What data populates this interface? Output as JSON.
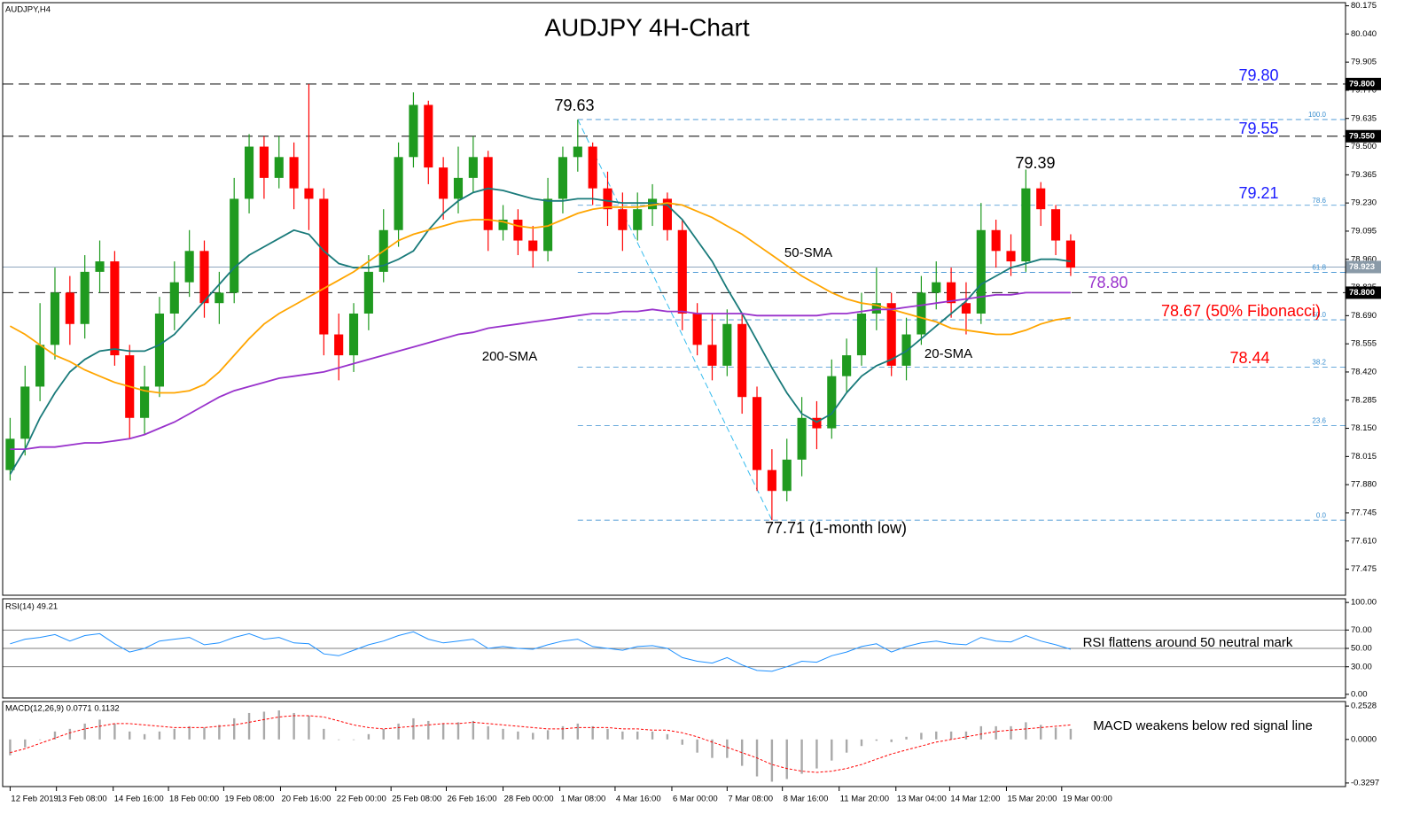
{
  "chart_data": [
    {
      "type": "candlestick",
      "title": "AUDJPY 4H-Chart",
      "symbol": "AUDJPY,H4",
      "up_color": "#1f9a1f",
      "down_color": "#ff0000",
      "open": [
        77.95,
        78.1,
        78.35,
        78.55,
        78.8,
        78.65,
        78.9,
        78.95,
        78.5,
        78.2,
        78.35,
        78.7,
        78.85,
        79.0,
        78.75,
        78.8,
        79.25,
        79.5,
        79.35,
        79.45,
        79.3,
        79.25,
        78.6,
        78.5,
        78.7,
        78.9,
        79.1,
        79.45,
        79.7,
        79.4,
        79.25,
        79.35,
        79.45,
        79.1,
        79.15,
        79.05,
        79.0,
        79.25,
        79.45,
        79.5,
        79.3,
        79.2,
        79.1,
        79.2,
        79.25,
        79.1,
        78.7,
        78.55,
        78.45,
        78.65,
        78.3,
        77.95,
        77.85,
        78.0,
        78.2,
        78.15,
        78.4,
        78.5,
        78.7,
        78.75,
        78.45,
        78.6,
        78.8,
        78.85,
        78.75,
        78.7,
        79.1,
        79.0,
        78.95,
        79.3,
        79.2,
        79.05
      ],
      "high": [
        78.2,
        78.45,
        78.75,
        78.92,
        78.88,
        78.98,
        79.05,
        79.0,
        78.55,
        78.45,
        78.78,
        78.95,
        79.1,
        79.05,
        78.9,
        79.35,
        79.56,
        79.55,
        79.55,
        79.52,
        79.8,
        79.3,
        78.7,
        78.75,
        78.98,
        79.2,
        79.52,
        79.76,
        79.72,
        79.45,
        79.5,
        79.55,
        79.48,
        79.22,
        79.2,
        79.12,
        79.35,
        79.5,
        79.63,
        79.52,
        79.38,
        79.28,
        79.28,
        79.32,
        79.28,
        79.15,
        78.75,
        78.7,
        78.72,
        78.7,
        78.35,
        78.05,
        78.1,
        78.3,
        78.28,
        78.48,
        78.58,
        78.8,
        78.92,
        78.8,
        78.68,
        78.88,
        78.95,
        78.92,
        78.85,
        79.23,
        79.15,
        79.08,
        79.39,
        79.33,
        79.22,
        79.08
      ],
      "low": [
        77.9,
        78.02,
        78.28,
        78.48,
        78.55,
        78.58,
        78.8,
        78.45,
        78.1,
        78.12,
        78.3,
        78.62,
        78.78,
        78.68,
        78.65,
        78.75,
        79.18,
        79.25,
        79.3,
        79.2,
        79.1,
        78.5,
        78.38,
        78.42,
        78.62,
        78.85,
        79.02,
        79.4,
        79.32,
        79.15,
        79.18,
        79.28,
        79.0,
        79.05,
        78.98,
        78.92,
        78.95,
        79.18,
        79.38,
        79.22,
        79.12,
        79.0,
        79.05,
        79.12,
        79.05,
        78.62,
        78.5,
        78.38,
        78.4,
        78.22,
        77.85,
        77.71,
        77.8,
        77.92,
        78.05,
        78.1,
        78.32,
        78.45,
        78.62,
        78.4,
        78.38,
        78.55,
        78.72,
        78.68,
        78.6,
        78.65,
        78.92,
        78.88,
        78.9,
        79.12,
        78.98,
        78.88
      ],
      "close": [
        78.1,
        78.35,
        78.55,
        78.8,
        78.65,
        78.9,
        78.95,
        78.5,
        78.2,
        78.35,
        78.7,
        78.85,
        79.0,
        78.75,
        78.8,
        79.25,
        79.5,
        79.35,
        79.45,
        79.3,
        79.25,
        78.6,
        78.5,
        78.7,
        78.9,
        79.1,
        79.45,
        79.7,
        79.4,
        79.25,
        79.35,
        79.45,
        79.1,
        79.15,
        79.05,
        79.0,
        79.25,
        79.45,
        79.5,
        79.3,
        79.2,
        79.1,
        79.2,
        79.25,
        79.1,
        78.7,
        78.55,
        78.45,
        78.65,
        78.3,
        77.95,
        77.85,
        78.0,
        78.2,
        78.15,
        78.4,
        78.5,
        78.7,
        78.75,
        78.45,
        78.6,
        78.8,
        78.85,
        78.75,
        78.7,
        79.1,
        79.0,
        78.95,
        79.3,
        79.2,
        79.05,
        78.92
      ],
      "series": [
        {
          "name": "20-SMA",
          "color": "#197a7a",
          "values": [
            77.93,
            78.05,
            78.2,
            78.32,
            78.42,
            78.48,
            78.52,
            78.53,
            78.52,
            78.52,
            78.55,
            78.6,
            78.68,
            78.76,
            78.84,
            78.92,
            78.98,
            79.02,
            79.06,
            79.1,
            79.08,
            79.0,
            78.94,
            78.92,
            78.92,
            78.93,
            78.96,
            79.0,
            79.1,
            79.18,
            79.24,
            79.28,
            79.3,
            79.29,
            79.27,
            79.25,
            79.24,
            79.24,
            79.25,
            79.25,
            79.24,
            79.23,
            79.23,
            79.23,
            79.22,
            79.15,
            79.05,
            78.95,
            78.82,
            78.7,
            78.57,
            78.44,
            78.32,
            78.22,
            78.18,
            78.22,
            78.32,
            78.4,
            78.45,
            78.48,
            78.52,
            78.58,
            78.64,
            78.7,
            78.76,
            78.84,
            78.88,
            78.92,
            78.94,
            78.96,
            78.96,
            78.95
          ]
        },
        {
          "name": "50-SMA",
          "color": "#ffa500",
          "values": [
            78.64,
            78.6,
            78.55,
            78.5,
            78.47,
            78.43,
            78.4,
            78.37,
            78.35,
            78.33,
            78.32,
            78.32,
            78.33,
            78.36,
            78.42,
            78.5,
            78.58,
            78.65,
            78.7,
            78.74,
            78.78,
            78.82,
            78.86,
            78.9,
            78.95,
            79.0,
            79.05,
            79.08,
            79.1,
            79.12,
            79.14,
            79.15,
            79.15,
            79.14,
            79.12,
            79.11,
            79.12,
            79.15,
            79.18,
            79.2,
            79.21,
            79.21,
            79.21,
            79.22,
            79.23,
            79.22,
            79.19,
            79.16,
            79.12,
            79.08,
            79.03,
            78.98,
            78.93,
            78.88,
            78.84,
            78.8,
            78.77,
            78.75,
            78.74,
            78.72,
            78.7,
            78.68,
            78.66,
            78.63,
            78.62,
            78.61,
            78.6,
            78.6,
            78.62,
            78.65,
            78.67,
            78.68
          ]
        },
        {
          "name": "200-SMA",
          "color": "#9932cc",
          "values": [
            78.05,
            78.05,
            78.06,
            78.06,
            78.07,
            78.08,
            78.08,
            78.09,
            78.1,
            78.12,
            78.15,
            78.18,
            78.22,
            78.26,
            78.3,
            78.33,
            78.35,
            78.37,
            78.39,
            78.4,
            78.41,
            78.42,
            78.44,
            78.46,
            78.48,
            78.5,
            78.52,
            78.54,
            78.56,
            78.58,
            78.6,
            78.61,
            78.63,
            78.64,
            78.65,
            78.66,
            78.67,
            78.68,
            78.69,
            78.7,
            78.7,
            78.71,
            78.71,
            78.72,
            78.71,
            78.71,
            78.7,
            78.7,
            78.7,
            78.7,
            78.69,
            78.69,
            78.69,
            78.69,
            78.69,
            78.7,
            78.7,
            78.71,
            78.72,
            78.72,
            78.73,
            78.74,
            78.75,
            78.76,
            78.77,
            78.78,
            78.79,
            78.79,
            78.8,
            78.8,
            78.8,
            78.8
          ]
        }
      ],
      "levels": [
        {
          "value": 79.8,
          "label": "79.800"
        },
        {
          "value": 79.55,
          "label": "79.550"
        },
        {
          "value": 78.8,
          "label": "78.800"
        }
      ],
      "last_price": 78.923,
      "fibonacci": [
        {
          "percent": "100.0",
          "price": 79.63
        },
        {
          "percent": "78.6",
          "price": 79.219
        },
        {
          "percent": "61.8",
          "price": 78.897
        },
        {
          "percent": "50.0",
          "price": 78.67
        },
        {
          "percent": "38.2",
          "price": 78.443
        },
        {
          "percent": "23.6",
          "price": 78.163
        },
        {
          "percent": "0.0",
          "price": 77.71
        }
      ],
      "swing": {
        "x": [
          38,
          51
        ],
        "y": [
          79.63,
          77.71
        ]
      },
      "annotations": [
        {
          "text": "79.80",
          "color": "#1a1aff"
        },
        {
          "text": "79.55",
          "color": "#1a1aff"
        },
        {
          "text": "79.63",
          "color": "#000000"
        },
        {
          "text": "79.39",
          "color": "#000000"
        },
        {
          "text": "79.21",
          "color": "#1a1aff"
        },
        {
          "text": "78.80",
          "color": "#9932cc"
        },
        {
          "text": "78.67 (50% Fibonacci)",
          "color": "#ff0000"
        },
        {
          "text": "78.44",
          "color": "#ff0000"
        },
        {
          "text": "77.71 (1-month low)",
          "color": "#000000"
        }
      ],
      "ylim": [
        77.35,
        80.19
      ],
      "yticks": [
        80.175,
        {
          "value": 80.04,
          "label": "80.040"
        },
        79.905,
        {
          "value": 79.77,
          "label": "79.770"
        },
        79.635,
        {
          "value": 79.5,
          "label": "79.500"
        },
        79.365,
        {
          "value": 79.23,
          "label": "79.230"
        },
        79.095,
        {
          "value": 78.96,
          "label": "78.960"
        },
        78.825,
        {
          "value": 78.69,
          "label": "78.690"
        },
        78.555,
        {
          "value": 78.42,
          "label": "78.420"
        },
        78.285,
        {
          "value": 78.15,
          "label": "78.150"
        },
        78.015,
        {
          "value": 77.88,
          "label": "77.880"
        },
        77.745,
        {
          "value": 77.61,
          "label": "77.610"
        },
        77.475
      ]
    },
    {
      "type": "line",
      "title": "RSI(14) 49.21",
      "annotation": "RSI flattens around 50 neutral mark",
      "series": [
        {
          "name": "RSI(14)",
          "color": "#1e90ff",
          "values": [
            55,
            60,
            62,
            65,
            58,
            64,
            66,
            55,
            46,
            50,
            58,
            60,
            62,
            54,
            56,
            62,
            66,
            60,
            62,
            56,
            55,
            44,
            42,
            48,
            54,
            58,
            64,
            68,
            60,
            56,
            58,
            60,
            50,
            52,
            50,
            49,
            54,
            58,
            60,
            52,
            50,
            48,
            52,
            53,
            50,
            40,
            36,
            34,
            40,
            32,
            26,
            25,
            30,
            36,
            35,
            42,
            46,
            52,
            55,
            46,
            52,
            56,
            58,
            55,
            54,
            62,
            58,
            57,
            64,
            58,
            54,
            49
          ]
        }
      ],
      "hlines": [
        70,
        50,
        30
      ],
      "ylim": [
        -4,
        104
      ],
      "yticks": [
        {
          "value": 100,
          "label": "100.00"
        },
        {
          "value": 70,
          "label": "70.00"
        },
        {
          "value": 50,
          "label": "50.00"
        },
        {
          "value": 30,
          "label": "30.00"
        },
        {
          "value": 0,
          "label": "0.00"
        }
      ]
    },
    {
      "type": "macd",
      "title": "MACD(12,26,9) 0.0771 0.1132",
      "annotation": "MACD weakens below red signal line",
      "histogram": {
        "color": "#a9a9a9",
        "values": [
          -0.12,
          -0.06,
          0.0,
          0.06,
          0.08,
          0.12,
          0.15,
          0.12,
          0.06,
          0.04,
          0.06,
          0.08,
          0.1,
          0.09,
          0.11,
          0.16,
          0.2,
          0.21,
          0.22,
          0.2,
          0.18,
          0.08,
          0.0,
          0.0,
          0.04,
          0.08,
          0.12,
          0.16,
          0.14,
          0.12,
          0.13,
          0.14,
          0.1,
          0.08,
          0.06,
          0.05,
          0.07,
          0.1,
          0.12,
          0.1,
          0.08,
          0.06,
          0.06,
          0.06,
          0.04,
          -0.04,
          -0.1,
          -0.14,
          -0.14,
          -0.2,
          -0.28,
          -0.32,
          -0.3,
          -0.26,
          -0.22,
          -0.16,
          -0.1,
          -0.05,
          -0.01,
          -0.02,
          0.02,
          0.05,
          0.06,
          0.06,
          0.06,
          0.1,
          0.1,
          0.1,
          0.13,
          0.11,
          0.09,
          0.08
        ]
      },
      "signal": {
        "color": "#ff0000",
        "values": [
          -0.1,
          -0.07,
          -0.03,
          0.01,
          0.05,
          0.08,
          0.1,
          0.12,
          0.12,
          0.11,
          0.1,
          0.09,
          0.09,
          0.09,
          0.1,
          0.11,
          0.13,
          0.15,
          0.17,
          0.18,
          0.18,
          0.17,
          0.14,
          0.11,
          0.09,
          0.08,
          0.09,
          0.1,
          0.11,
          0.12,
          0.12,
          0.13,
          0.12,
          0.11,
          0.1,
          0.09,
          0.08,
          0.08,
          0.09,
          0.09,
          0.09,
          0.08,
          0.08,
          0.07,
          0.07,
          0.05,
          0.02,
          -0.02,
          -0.06,
          -0.1,
          -0.14,
          -0.19,
          -0.22,
          -0.24,
          -0.25,
          -0.24,
          -0.22,
          -0.19,
          -0.15,
          -0.11,
          -0.08,
          -0.05,
          -0.02,
          0.0,
          0.02,
          0.04,
          0.06,
          0.07,
          0.08,
          0.09,
          0.1,
          0.11
        ]
      },
      "ylim": [
        -0.357,
        0.287
      ],
      "yticks": [
        0.2528,
        {
          "value": 0,
          "label": "0.0000"
        },
        -0.3297
      ],
      "xlim": [
        -0.5,
        89.4
      ],
      "xticks": [
        {
          "value": 0,
          "label": "12 Feb 2019"
        },
        {
          "value": 3.1,
          "label": "13 Feb 08:00"
        },
        {
          "value": 6.9,
          "label": "14 Feb 16:00"
        },
        {
          "value": 10.6,
          "label": "18 Feb 00:00"
        },
        {
          "value": 14.3,
          "label": "19 Feb 08:00"
        },
        {
          "value": 18.1,
          "label": "20 Feb 16:00"
        },
        {
          "value": 21.8,
          "label": "22 Feb 00:00"
        },
        {
          "value": 25.5,
          "label": "25 Feb 08:00"
        },
        {
          "value": 29.2,
          "label": "26 Feb 16:00"
        },
        {
          "value": 33.0,
          "label": "28 Feb 00:00"
        },
        {
          "value": 36.8,
          "label": "1 Mar 08:00"
        },
        {
          "value": 40.5,
          "label": "4 Mar 16:00"
        },
        {
          "value": 44.3,
          "label": "6 Mar 00:00"
        },
        {
          "value": 48.0,
          "label": "7 Mar 08:00"
        },
        {
          "value": 51.7,
          "label": "8 Mar 16:00"
        },
        {
          "value": 55.5,
          "label": "11 Mar 20:00"
        },
        {
          "value": 59.3,
          "label": "13 Mar 04:00"
        },
        {
          "value": 62.9,
          "label": "14 Mar 12:00"
        },
        {
          "value": 66.7,
          "label": "15 Mar 20:00"
        },
        {
          "value": 70.4,
          "label": "19 Mar 00:00"
        }
      ]
    }
  ]
}
